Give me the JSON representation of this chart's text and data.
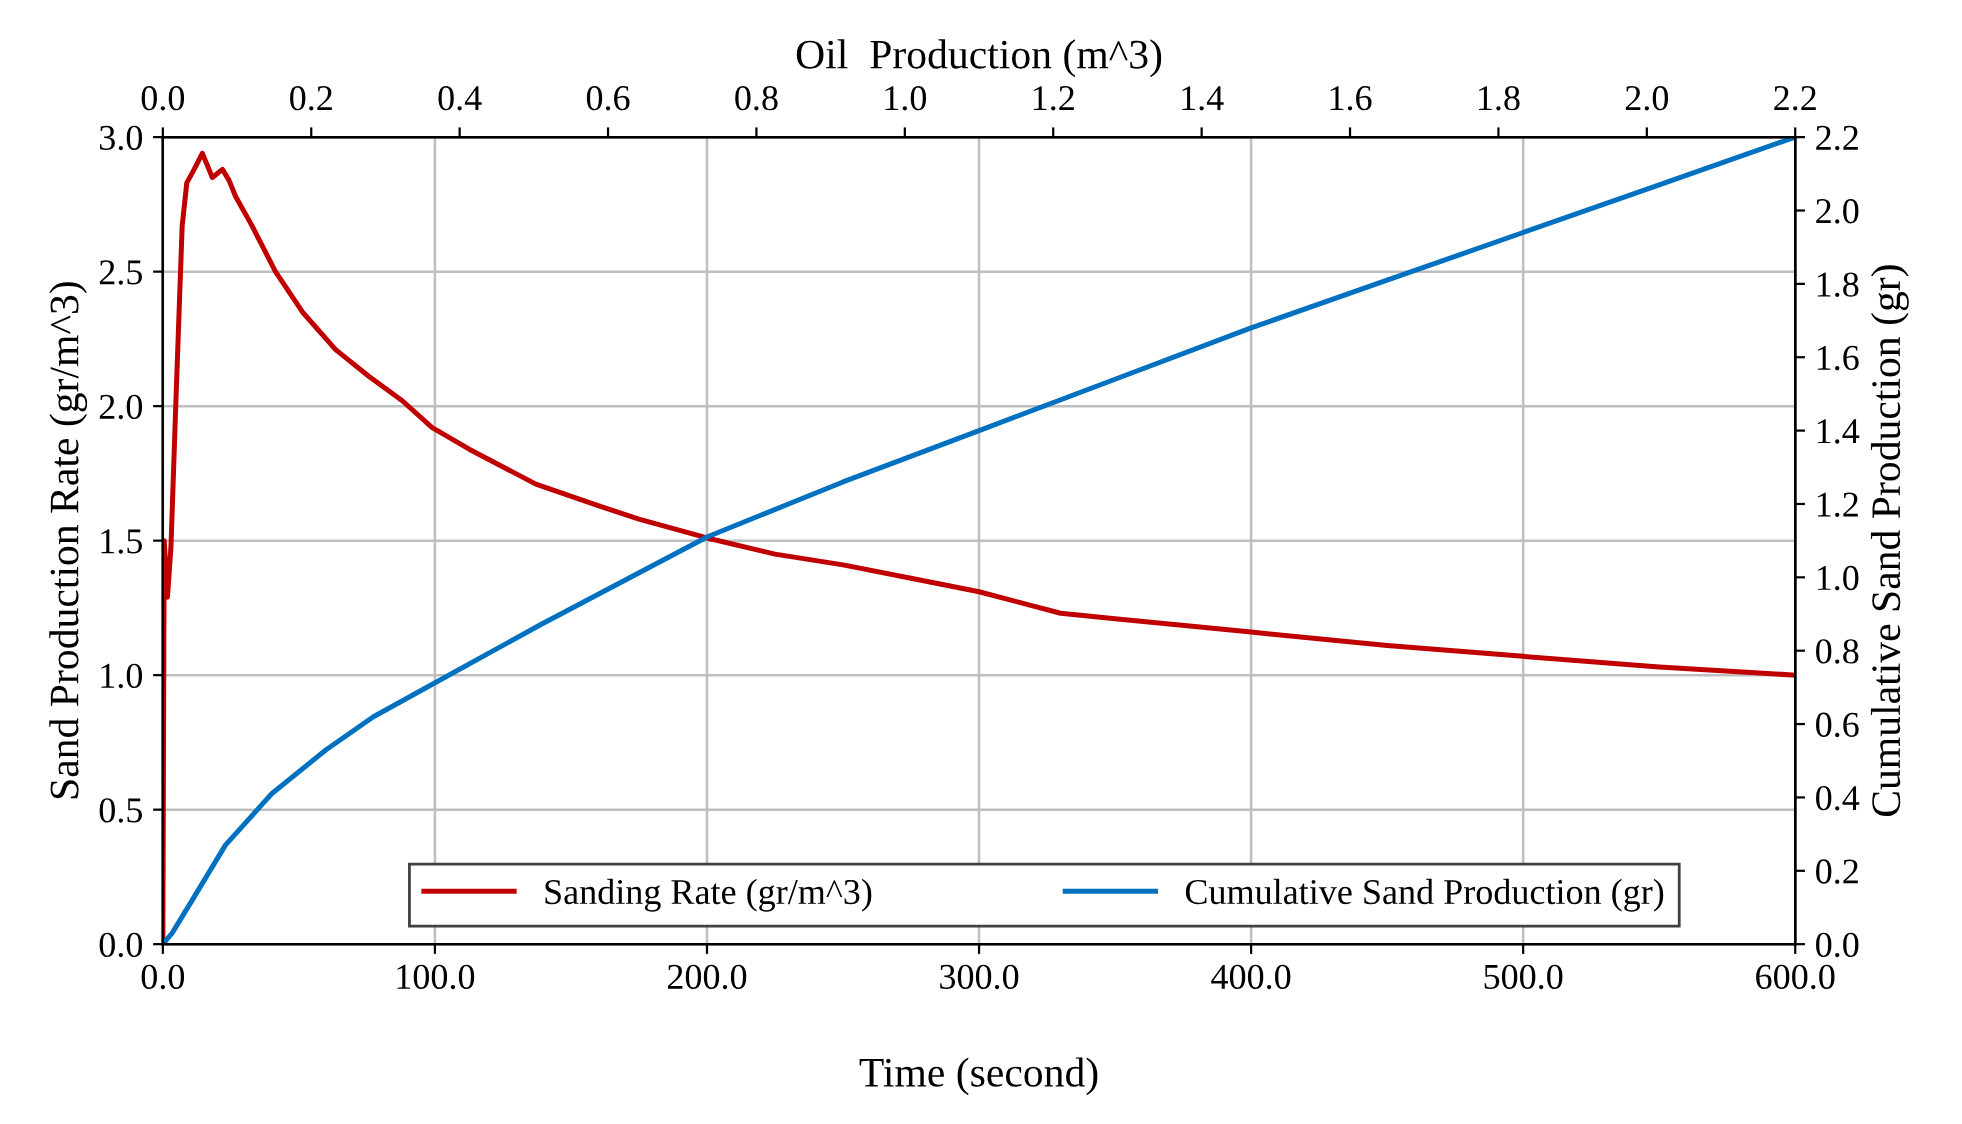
{
  "chart_data": {
    "type": "line",
    "xlabel": "Time (second)",
    "ylabel": "Sand Production Rate (gr/m^3)",
    "y2label": "Cumulative Sand Production (gr)",
    "x2label": "Oil  Production (m^3)",
    "xlim": [
      0,
      600
    ],
    "xticks": [
      {
        "value": 0,
        "label": "0.0"
      },
      {
        "value": 100,
        "label": "100.0"
      },
      {
        "value": 200,
        "label": "200.0"
      },
      {
        "value": 300,
        "label": "300.0"
      },
      {
        "value": 400,
        "label": "400.0"
      },
      {
        "value": 500,
        "label": "500.0"
      },
      {
        "value": 600,
        "label": "600.0"
      }
    ],
    "ylim": [
      0,
      3
    ],
    "yticks": [
      {
        "value": 0,
        "label": "0.0"
      },
      {
        "value": 0.5,
        "label": "0.5"
      },
      {
        "value": 1,
        "label": "1.0"
      },
      {
        "value": 1.5,
        "label": "1.5"
      },
      {
        "value": 2,
        "label": "2.0"
      },
      {
        "value": 2.5,
        "label": "2.5"
      },
      {
        "value": 3,
        "label": "3.0"
      }
    ],
    "y2lim": [
      0,
      2.2
    ],
    "y2ticks": [
      {
        "value": 0,
        "label": "0.0"
      },
      {
        "value": 0.2,
        "label": "0.2"
      },
      {
        "value": 0.4,
        "label": "0.4"
      },
      {
        "value": 0.6,
        "label": "0.6"
      },
      {
        "value": 0.8,
        "label": "0.8"
      },
      {
        "value": 1,
        "label": "1.0"
      },
      {
        "value": 1.2,
        "label": "1.2"
      },
      {
        "value": 1.4,
        "label": "1.4"
      },
      {
        "value": 1.6,
        "label": "1.6"
      },
      {
        "value": 1.8,
        "label": "1.8"
      },
      {
        "value": 2,
        "label": "2.0"
      },
      {
        "value": 2.2,
        "label": "2.2"
      }
    ],
    "x2lim": [
      0,
      2.2
    ],
    "x2ticks": [
      {
        "value": 0,
        "label": "0.0"
      },
      {
        "value": 0.2,
        "label": "0.2"
      },
      {
        "value": 0.4,
        "label": "0.4"
      },
      {
        "value": 0.6,
        "label": "0.6"
      },
      {
        "value": 0.8,
        "label": "0.8"
      },
      {
        "value": 1,
        "label": "1.0"
      },
      {
        "value": 1.2,
        "label": "1.2"
      },
      {
        "value": 1.4,
        "label": "1.4"
      },
      {
        "value": 1.6,
        "label": "1.6"
      },
      {
        "value": 1.8,
        "label": "1.8"
      },
      {
        "value": 2,
        "label": "2.0"
      },
      {
        "value": 2.2,
        "label": "2.2"
      }
    ],
    "grid": true,
    "legend": "bottom",
    "marker": "none",
    "line_style": "solid",
    "series": [
      {
        "name": "Sanding Rate (gr/m^3)",
        "color": "#c00000",
        "x": [
          0,
          0.5,
          1.7,
          3,
          4.7,
          7.1,
          8.8,
          11.5,
          14.5,
          18.2,
          21.9,
          24.3,
          26.7,
          32.8,
          41.4,
          51.3,
          63.5,
          75.8,
          88,
          99,
          112.6,
          137.1,
          160,
          175,
          200,
          225,
          250,
          275,
          300,
          330,
          350,
          400,
          450,
          500,
          550,
          600
        ],
        "values": [
          0,
          1.5,
          1.29,
          1.48,
          1.99,
          2.67,
          2.83,
          2.88,
          2.94,
          2.85,
          2.88,
          2.84,
          2.78,
          2.67,
          2.5,
          2.35,
          2.21,
          2.11,
          2.02,
          1.92,
          1.84,
          1.71,
          1.63,
          1.58,
          1.51,
          1.45,
          1.41,
          1.36,
          1.31,
          1.23,
          1.21,
          1.16,
          1.11,
          1.07,
          1.03,
          1.0
        ]
      },
      {
        "name": "Cumulative Sand Production (gr)",
        "color": "#0070c0",
        "axis": "y2",
        "x": [
          0,
          3.4,
          10.8,
          23,
          40,
          60,
          77.4,
          99.4,
          119,
          138.6,
          200,
          250,
          300,
          350,
          400,
          450,
          500,
          550,
          600
        ],
        "values": [
          0,
          0.03,
          0.12,
          0.27,
          0.41,
          0.53,
          0.62,
          0.71,
          0.79,
          0.87,
          1.11,
          1.26,
          1.4,
          1.54,
          1.68,
          1.81,
          1.94,
          2.07,
          2.2
        ]
      }
    ]
  }
}
